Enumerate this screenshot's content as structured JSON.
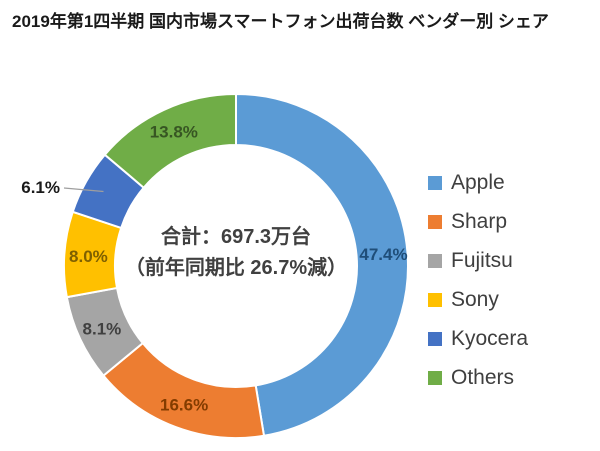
{
  "title": "2019年第1四半期 国内市場スマートフォン出荷台数 ベンダー別 シェア",
  "center_label": {
    "line1": "合計：697.3万台",
    "line2": "（前年同期比 26.7%減）"
  },
  "chart_data": {
    "type": "pie",
    "subtype": "donut",
    "title": "2019年第1四半期 国内市場スマートフォン出荷台数 ベンダー別 シェア",
    "center_text": "合計：697.3万台（前年同期比 26.7%減）",
    "total_value_label": "697.3万台",
    "yoy_change_label": "前年同期比 26.7%減",
    "start_angle": "top",
    "direction": "clockwise",
    "legend_position": "right",
    "slices": [
      {
        "name": "Apple",
        "value": 47.4,
        "label": "47.4%",
        "color": "#5B9BD5",
        "label_color": "#1F4E79",
        "label_position": "inside"
      },
      {
        "name": "Sharp",
        "value": 16.6,
        "label": "16.6%",
        "color": "#ED7D31",
        "label_color": "#833C00",
        "label_position": "inside"
      },
      {
        "name": "Fujitsu",
        "value": 8.1,
        "label": "8.1%",
        "color": "#A5A5A5",
        "label_color": "#404040",
        "label_position": "inside"
      },
      {
        "name": "Sony",
        "value": 8.0,
        "label": "8.0%",
        "color": "#FFC000",
        "label_color": "#7F6000",
        "label_position": "inside"
      },
      {
        "name": "Kyocera",
        "value": 6.1,
        "label": "6.1%",
        "color": "#4472C4",
        "label_color": "#1a1a1a",
        "label_position": "outside"
      },
      {
        "name": "Others",
        "value": 13.8,
        "label": "13.8%",
        "color": "#70AD47",
        "label_color": "#375623",
        "label_position": "inside"
      }
    ]
  }
}
